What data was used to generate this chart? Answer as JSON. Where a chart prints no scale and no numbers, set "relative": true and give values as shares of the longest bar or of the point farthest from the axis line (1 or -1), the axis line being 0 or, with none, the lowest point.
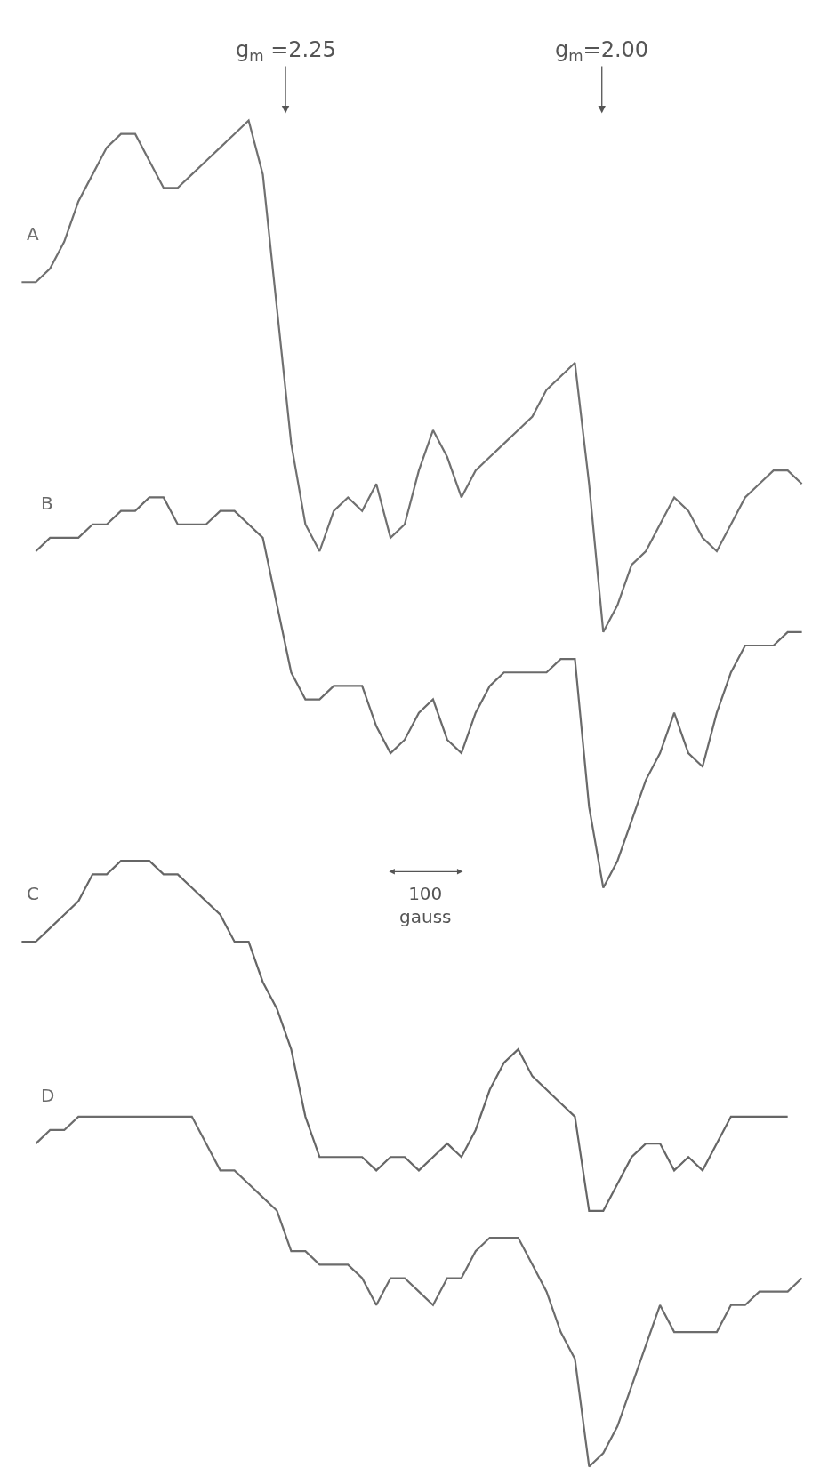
{
  "chart_data": {
    "type": "line",
    "relative": true,
    "legend": false,
    "tick_labels": false,
    "line_style": "solid",
    "marker": "none",
    "categories": [
      null,
      null,
      null,
      null,
      null,
      null,
      null,
      null,
      null,
      null,
      null,
      null,
      null,
      null,
      null,
      null,
      null,
      null,
      null,
      null,
      null,
      null,
      null,
      null,
      null,
      null,
      null,
      null,
      null,
      null,
      null,
      null,
      null,
      null,
      null,
      null,
      null,
      null,
      null,
      null,
      null,
      null,
      null,
      null,
      null,
      null,
      null,
      null,
      null,
      null,
      null,
      null,
      null,
      null,
      null,
      null
    ],
    "series": [
      {
        "name": "A",
        "color": "#707070",
        "values": [
          0.88,
          0.88,
          0.89,
          0.91,
          0.94,
          0.96,
          0.98,
          0.99,
          0.99,
          0.97,
          0.95,
          0.95,
          0.96,
          0.97,
          0.98,
          0.99,
          1.0,
          0.96,
          0.86,
          0.76,
          0.7,
          0.68,
          0.71,
          0.72,
          0.71,
          0.73,
          0.69,
          0.7,
          0.74,
          0.77,
          0.75,
          0.72,
          0.74,
          0.75,
          0.76,
          0.77,
          0.78,
          0.8,
          0.81,
          0.82,
          0.73,
          0.62,
          0.64,
          0.67,
          0.68,
          0.7,
          0.72,
          0.71,
          0.69,
          0.68,
          0.7,
          0.72,
          0.73,
          0.74,
          0.74,
          0.73
        ]
      },
      {
        "name": "B",
        "color": "#6a6a6a",
        "values": [
          null,
          0.68,
          0.69,
          0.69,
          0.69,
          0.7,
          0.7,
          0.71,
          0.71,
          0.72,
          0.72,
          0.7,
          0.7,
          0.7,
          0.71,
          0.71,
          0.7,
          0.69,
          0.64,
          0.59,
          0.57,
          0.57,
          0.58,
          0.58,
          0.58,
          0.55,
          0.53,
          0.54,
          0.56,
          0.57,
          0.54,
          0.53,
          0.56,
          0.58,
          0.59,
          0.59,
          0.59,
          0.59,
          0.6,
          0.6,
          0.49,
          0.43,
          0.45,
          0.48,
          0.51,
          0.53,
          0.56,
          0.53,
          0.52,
          0.56,
          0.59,
          0.61,
          0.61,
          0.61,
          0.62,
          0.62
        ]
      },
      {
        "name": "C",
        "color": "#666666",
        "values": [
          0.39,
          0.39,
          0.4,
          0.41,
          0.42,
          0.44,
          0.44,
          0.45,
          0.45,
          0.45,
          0.44,
          0.44,
          0.43,
          0.42,
          0.41,
          0.39,
          0.39,
          0.36,
          0.34,
          0.31,
          0.26,
          0.23,
          0.23,
          0.23,
          0.23,
          0.22,
          0.23,
          0.23,
          0.22,
          0.23,
          0.24,
          0.23,
          0.25,
          0.28,
          0.3,
          0.31,
          0.29,
          0.28,
          0.27,
          0.26,
          0.19,
          0.19,
          0.21,
          0.23,
          0.24,
          0.24,
          0.22,
          0.23,
          0.22,
          0.24,
          0.26,
          0.26,
          0.26,
          0.26,
          0.26,
          null
        ]
      },
      {
        "name": "D",
        "color": "#6c6c6c",
        "values": [
          null,
          0.24,
          0.25,
          0.25,
          0.26,
          0.26,
          0.26,
          0.26,
          0.26,
          0.26,
          0.26,
          0.26,
          0.26,
          0.24,
          0.22,
          0.22,
          0.21,
          0.2,
          0.19,
          0.16,
          0.16,
          0.15,
          0.15,
          0.15,
          0.14,
          0.12,
          0.14,
          0.14,
          0.13,
          0.12,
          0.14,
          0.14,
          0.16,
          0.17,
          0.17,
          0.17,
          0.15,
          0.13,
          0.1,
          0.08,
          0.0,
          0.01,
          0.03,
          0.06,
          0.09,
          0.12,
          0.1,
          0.1,
          0.1,
          0.1,
          0.12,
          0.12,
          0.13,
          0.13,
          0.13,
          0.14
        ]
      }
    ],
    "annotations": [
      "g$_{m}$ =2.25",
      "g$_{m}$=2.00",
      "100 gauss"
    ]
  }
}
